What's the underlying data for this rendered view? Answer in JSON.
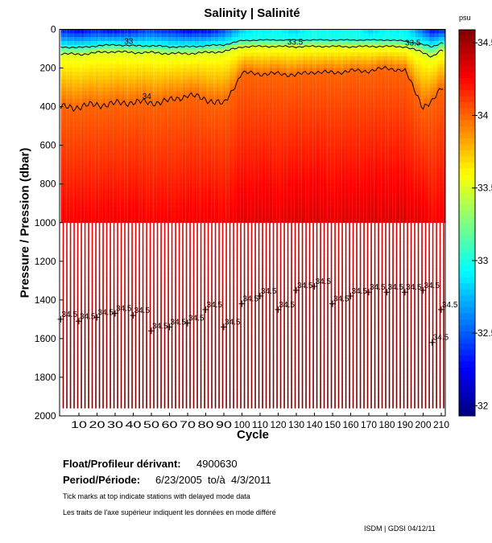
{
  "chart_data": {
    "type": "heatmap",
    "title": "Salinity | Salinité",
    "xlabel": "Cycle",
    "ylabel": "Pressure / Pression (dbar)",
    "colorbar_label": "psu",
    "xlim": [
      0,
      212
    ],
    "ylim": [
      2000,
      0
    ],
    "x_ticks": [
      10,
      20,
      30,
      40,
      50,
      60,
      70,
      80,
      90,
      100,
      110,
      120,
      130,
      140,
      150,
      160,
      170,
      180,
      190,
      200,
      210
    ],
    "y_ticks": [
      0,
      200,
      400,
      600,
      800,
      1000,
      1200,
      1400,
      1600,
      1800,
      2000
    ],
    "clim": [
      31.93,
      34.59
    ],
    "colorbar_ticks": [
      "32",
      "32.5",
      "33",
      "33.5",
      "34",
      "34.5"
    ],
    "colorbar_tick_values": [
      32,
      32.5,
      33,
      33.5,
      34,
      34.5
    ],
    "colormap": "jet",
    "profile_cycles": [
      0,
      10,
      20,
      30,
      40,
      50,
      60,
      70,
      80,
      90,
      100,
      110,
      120,
      130,
      140,
      150,
      160,
      170,
      180,
      190,
      200,
      205,
      210
    ],
    "surface_salinity": [
      32.3,
      32.2,
      32.3,
      32.2,
      32.3,
      32.4,
      32.3,
      32.2,
      32.2,
      32.4,
      32.8,
      32.9,
      32.9,
      32.8,
      33.0,
      32.9,
      33.0,
      32.8,
      32.9,
      32.9,
      32.5,
      32.2,
      32.3
    ],
    "bottom_salinity": 34.6,
    "contours": [
      {
        "level": 33,
        "label": "33",
        "depths": [
          90,
          95,
          85,
          80,
          85,
          85,
          90,
          90,
          85,
          80,
          58,
          55,
          55,
          55,
          55,
          55,
          55,
          55,
          55,
          60,
          80,
          90,
          70
        ]
      },
      {
        "level": 33.5,
        "label": "33.5",
        "depths": [
          125,
          130,
          120,
          115,
          120,
          120,
          125,
          125,
          120,
          115,
          90,
          88,
          88,
          90,
          88,
          88,
          90,
          88,
          88,
          90,
          120,
          140,
          110
        ]
      },
      {
        "level": 34,
        "label": "34",
        "depths": [
          405,
          400,
          390,
          385,
          375,
          380,
          370,
          340,
          360,
          390,
          225,
          230,
          230,
          235,
          220,
          225,
          215,
          215,
          200,
          215,
          400,
          380,
          300
        ]
      },
      {
        "level": 34.5,
        "label": "34.5",
        "depths": [
          1500,
          1510,
          1490,
          1470,
          1480,
          1560,
          1540,
          1520,
          1450,
          1540,
          1420,
          1380,
          1450,
          1350,
          1330,
          1420,
          1380,
          1360,
          1360,
          1360,
          1350,
          1620,
          1450
        ]
      }
    ],
    "deep_profile_depth": 1950,
    "shallow_profile_depth": 1000
  },
  "info": {
    "float_label": "Float/Profileur dérivant:",
    "float_value": "4900630",
    "period_label": "Period/Période:",
    "period_value": "6/23/2005  to/à  4/3/2011",
    "note_en": "Tick marks at top indicate stations with delayed mode data",
    "note_fr": "Les traits de l'axe supérieur indiquent les données en mode différé",
    "credit": "ISDM | GDSI 04/12/11"
  }
}
